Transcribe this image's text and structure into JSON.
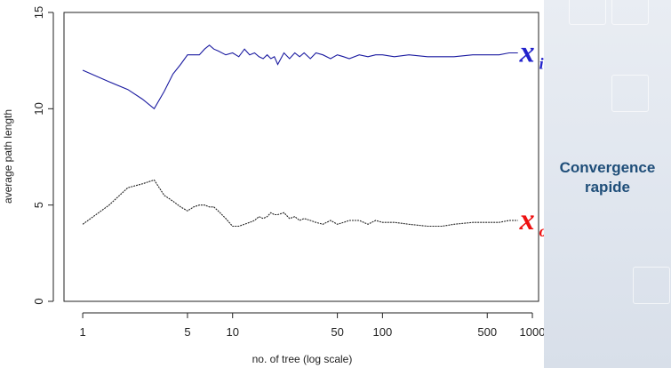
{
  "chart_data": {
    "type": "line",
    "title": "",
    "xlabel": "no. of tree (log scale)",
    "ylabel": "average path length",
    "xscale": "log",
    "xlim": [
      0.75,
      1100
    ],
    "ylim": [
      0,
      15
    ],
    "x_ticks": [
      1,
      5,
      10,
      50,
      100,
      500,
      1000
    ],
    "y_ticks": [
      0,
      5,
      10,
      15
    ],
    "grid": false,
    "series": [
      {
        "name": "x_i",
        "label_main": "x",
        "label_sub": "i",
        "color": "#1a1aa0",
        "label_color": "#2222cc",
        "x": [
          1,
          1.5,
          2,
          2.5,
          3,
          3.5,
          4,
          4.5,
          5,
          5.5,
          6,
          6.5,
          7,
          7.5,
          8,
          9,
          10,
          11,
          12,
          13,
          14,
          15,
          16,
          17,
          18,
          19,
          20,
          22,
          24,
          26,
          28,
          30,
          33,
          36,
          40,
          45,
          50,
          55,
          60,
          70,
          80,
          90,
          100,
          120,
          150,
          200,
          250,
          300,
          400,
          500,
          600,
          700,
          800
        ],
        "y": [
          12.0,
          11.4,
          11.0,
          10.5,
          10.0,
          10.9,
          11.8,
          12.3,
          12.8,
          12.8,
          12.8,
          13.1,
          13.3,
          13.1,
          13.0,
          12.8,
          12.9,
          12.7,
          13.1,
          12.8,
          12.9,
          12.7,
          12.6,
          12.8,
          12.6,
          12.7,
          12.3,
          12.9,
          12.6,
          12.9,
          12.7,
          12.9,
          12.6,
          12.9,
          12.8,
          12.6,
          12.8,
          12.7,
          12.6,
          12.8,
          12.7,
          12.8,
          12.8,
          12.7,
          12.8,
          12.7,
          12.7,
          12.7,
          12.8,
          12.8,
          12.8,
          12.9,
          12.9
        ]
      },
      {
        "name": "x_o",
        "label_main": "x",
        "label_sub": "o",
        "color": "#222222",
        "label_color": "#ee1111",
        "x": [
          1,
          1.5,
          2,
          2.5,
          3,
          3.5,
          4,
          4.5,
          5,
          5.5,
          6,
          6.5,
          7,
          7.5,
          8,
          9,
          10,
          11,
          12,
          13,
          14,
          15,
          16,
          17,
          18,
          19,
          20,
          22,
          24,
          26,
          28,
          30,
          33,
          36,
          40,
          45,
          50,
          55,
          60,
          70,
          80,
          90,
          100,
          120,
          150,
          200,
          250,
          300,
          400,
          500,
          600,
          700,
          800
        ],
        "y": [
          4.0,
          5.0,
          5.9,
          6.1,
          6.3,
          5.5,
          5.2,
          4.9,
          4.7,
          4.9,
          5.0,
          5.0,
          4.9,
          4.9,
          4.7,
          4.3,
          3.9,
          3.9,
          4.0,
          4.1,
          4.2,
          4.4,
          4.3,
          4.4,
          4.6,
          4.5,
          4.5,
          4.6,
          4.3,
          4.4,
          4.2,
          4.3,
          4.2,
          4.1,
          4.0,
          4.2,
          4.0,
          4.1,
          4.2,
          4.2,
          4.0,
          4.2,
          4.1,
          4.1,
          4.0,
          3.9,
          3.9,
          4.0,
          4.1,
          4.1,
          4.1,
          4.2,
          4.2
        ]
      }
    ]
  },
  "side_panel": {
    "caption_line1": "Convergence",
    "caption_line2": "rapide",
    "caption_color": "#1f4e79"
  }
}
